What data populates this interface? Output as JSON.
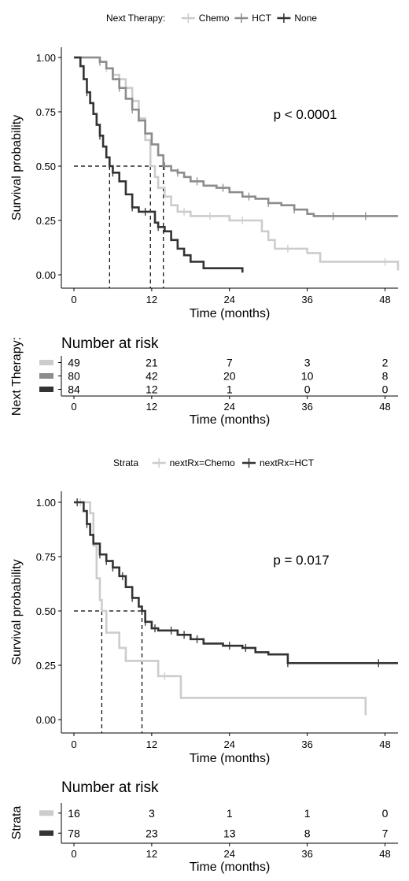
{
  "chart_data": [
    {
      "type": "line",
      "legend": {
        "title": "Next Therapy:",
        "placement": "top",
        "items": [
          "Chemo",
          "HCT",
          "None"
        ]
      },
      "xlabel": "Time (months)",
      "ylabel": "Survival probability",
      "xticks": [
        "0",
        "12",
        "24",
        "36",
        "48"
      ],
      "yticks": [
        "0.00",
        "0.25",
        "0.50",
        "0.75",
        "1.00"
      ],
      "xlim": [
        0,
        50
      ],
      "ylim": [
        0,
        1
      ],
      "grid": false,
      "annotation": "p < 0.0001",
      "median_line_y": 0.5,
      "medians": [
        11.8,
        13.8,
        5.5
      ],
      "series": [
        {
          "name": "Chemo",
          "color": "#cccccc",
          "points": [
            [
              0,
              1
            ],
            [
              2,
              1
            ],
            [
              4,
              0.98
            ],
            [
              5,
              0.95
            ],
            [
              6,
              0.92
            ],
            [
              7,
              0.9
            ],
            [
              8,
              0.86
            ],
            [
              9,
              0.8
            ],
            [
              10,
              0.72
            ],
            [
              11,
              0.62
            ],
            [
              11.8,
              0.5
            ],
            [
              12.5,
              0.45
            ],
            [
              13,
              0.4
            ],
            [
              14,
              0.36
            ],
            [
              15,
              0.32
            ],
            [
              16,
              0.29
            ],
            [
              18,
              0.27
            ],
            [
              20,
              0.27
            ],
            [
              24,
              0.25
            ],
            [
              28,
              0.25
            ],
            [
              29,
              0.2
            ],
            [
              30,
              0.16
            ],
            [
              31,
              0.12
            ],
            [
              36,
              0.1
            ],
            [
              38,
              0.06
            ],
            [
              48,
              0.06
            ],
            [
              50,
              0.02
            ]
          ],
          "censor": [
            5,
            8,
            10,
            17,
            21,
            26,
            33,
            48
          ]
        },
        {
          "name": "HCT",
          "color": "#8c8c8c",
          "points": [
            [
              0,
              1
            ],
            [
              3,
              1
            ],
            [
              4,
              0.98
            ],
            [
              5,
              0.95
            ],
            [
              6,
              0.9
            ],
            [
              7,
              0.86
            ],
            [
              8,
              0.81
            ],
            [
              9,
              0.76
            ],
            [
              10,
              0.71
            ],
            [
              11,
              0.65
            ],
            [
              12,
              0.6
            ],
            [
              13,
              0.55
            ],
            [
              13.8,
              0.5
            ],
            [
              15,
              0.48
            ],
            [
              16,
              0.47
            ],
            [
              17,
              0.45
            ],
            [
              18,
              0.43
            ],
            [
              20,
              0.41
            ],
            [
              22,
              0.4
            ],
            [
              24,
              0.38
            ],
            [
              26,
              0.36
            ],
            [
              28,
              0.35
            ],
            [
              30,
              0.33
            ],
            [
              32,
              0.32
            ],
            [
              34,
              0.3
            ],
            [
              36,
              0.28
            ],
            [
              37,
              0.27
            ],
            [
              50,
              0.27
            ]
          ],
          "censor": [
            4,
            7,
            9,
            14,
            16,
            19,
            23,
            27,
            30,
            34,
            40,
            45
          ]
        },
        {
          "name": "None",
          "color": "#333333",
          "points": [
            [
              0,
              1
            ],
            [
              1,
              0.96
            ],
            [
              1.5,
              0.9
            ],
            [
              2,
              0.84
            ],
            [
              2.5,
              0.79
            ],
            [
              3,
              0.74
            ],
            [
              3.5,
              0.69
            ],
            [
              4,
              0.64
            ],
            [
              4.5,
              0.59
            ],
            [
              5,
              0.54
            ],
            [
              5.5,
              0.5
            ],
            [
              6,
              0.47
            ],
            [
              7,
              0.43
            ],
            [
              8,
              0.37
            ],
            [
              9,
              0.31
            ],
            [
              10,
              0.29
            ],
            [
              12,
              0.29
            ],
            [
              12.5,
              0.24
            ],
            [
              13,
              0.22
            ],
            [
              14,
              0.2
            ],
            [
              15,
              0.16
            ],
            [
              16,
              0.12
            ],
            [
              17,
              0.09
            ],
            [
              18,
              0.06
            ],
            [
              20,
              0.03
            ],
            [
              26,
              0.03
            ],
            [
              26,
              0.01
            ]
          ],
          "censor": [
            2,
            4,
            6,
            9,
            11,
            13
          ]
        }
      ]
    },
    {
      "type": "table",
      "title": "Number at risk",
      "ylabel": "Next Therapy:",
      "xlabel": "Time (months)",
      "xticks": [
        "0",
        "12",
        "24",
        "36",
        "48"
      ],
      "rows": [
        {
          "color": "#cccccc",
          "values": [
            "49",
            "21",
            "7",
            "3",
            "2"
          ]
        },
        {
          "color": "#8c8c8c",
          "values": [
            "80",
            "42",
            "20",
            "10",
            "8"
          ]
        },
        {
          "color": "#333333",
          "values": [
            "84",
            "12",
            "1",
            "0",
            "0"
          ]
        }
      ]
    },
    {
      "type": "line",
      "legend": {
        "title": "Strata",
        "placement": "top",
        "items": [
          "nextRx=Chemo",
          "nextRx=HCT"
        ]
      },
      "xlabel": "Time (months)",
      "ylabel": "Survival probability",
      "xticks": [
        "0",
        "12",
        "24",
        "36",
        "48"
      ],
      "yticks": [
        "0.00",
        "0.25",
        "0.50",
        "0.75",
        "1.00"
      ],
      "xlim": [
        0,
        50
      ],
      "ylim": [
        0,
        1
      ],
      "grid": false,
      "annotation": "p = 0.017",
      "median_line_y": 0.5,
      "medians": [
        4.3,
        10.5
      ],
      "series": [
        {
          "name": "nextRx=Chemo",
          "color": "#cccccc",
          "points": [
            [
              0,
              1
            ],
            [
              2,
              1
            ],
            [
              2.5,
              0.95
            ],
            [
              3,
              0.8
            ],
            [
              3.5,
              0.65
            ],
            [
              4,
              0.55
            ],
            [
              4.3,
              0.5
            ],
            [
              5,
              0.4
            ],
            [
              6,
              0.4
            ],
            [
              7,
              0.33
            ],
            [
              8,
              0.27
            ],
            [
              12,
              0.27
            ],
            [
              13,
              0.2
            ],
            [
              16,
              0.2
            ],
            [
              16.5,
              0.1
            ],
            [
              45,
              0.1
            ],
            [
              45,
              0.02
            ]
          ],
          "censor": [
            1,
            14
          ]
        },
        {
          "name": "nextRx=HCT",
          "color": "#333333",
          "points": [
            [
              0,
              1
            ],
            [
              1,
              1
            ],
            [
              1.5,
              0.96
            ],
            [
              2,
              0.9
            ],
            [
              2.5,
              0.85
            ],
            [
              3,
              0.81
            ],
            [
              4,
              0.76
            ],
            [
              5,
              0.73
            ],
            [
              6,
              0.7
            ],
            [
              7,
              0.66
            ],
            [
              8,
              0.61
            ],
            [
              9,
              0.56
            ],
            [
              10,
              0.52
            ],
            [
              10.5,
              0.5
            ],
            [
              11,
              0.45
            ],
            [
              12,
              0.42
            ],
            [
              13,
              0.41
            ],
            [
              16,
              0.39
            ],
            [
              18,
              0.37
            ],
            [
              20,
              0.35
            ],
            [
              23,
              0.34
            ],
            [
              26,
              0.33
            ],
            [
              28,
              0.31
            ],
            [
              30,
              0.3
            ],
            [
              33,
              0.26
            ],
            [
              50,
              0.26
            ]
          ],
          "censor": [
            0.5,
            2,
            4,
            5,
            6,
            7.5,
            9,
            11,
            12.5,
            15,
            17,
            19,
            24,
            26.5,
            33,
            47
          ]
        }
      ]
    },
    {
      "type": "table",
      "title": "Number at risk",
      "ylabel": "Strata",
      "xlabel": "Time (months)",
      "xticks": [
        "0",
        "12",
        "24",
        "36",
        "48"
      ],
      "rows": [
        {
          "color": "#cccccc",
          "values": [
            "16",
            "3",
            "1",
            "1",
            "0"
          ]
        },
        {
          "color": "#333333",
          "values": [
            "78",
            "23",
            "13",
            "8",
            "7"
          ]
        }
      ]
    }
  ]
}
